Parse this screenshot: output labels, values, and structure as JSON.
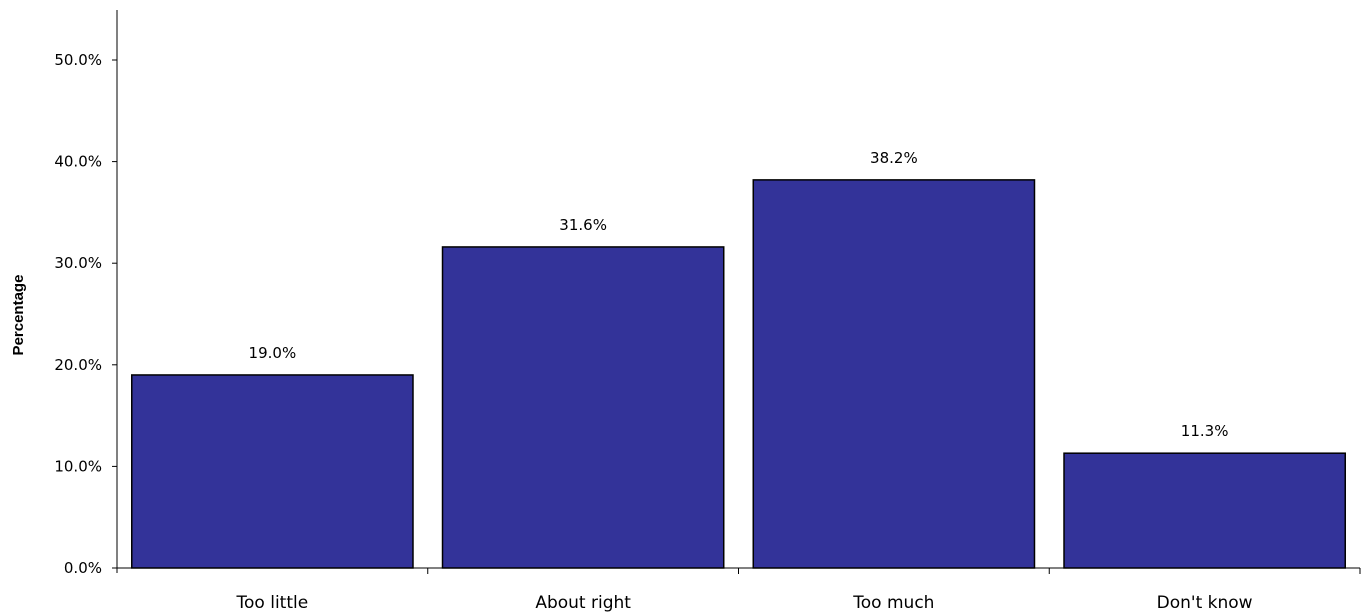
{
  "chart_data": {
    "type": "bar",
    "title": "",
    "xlabel": "",
    "ylabel": "Percentage",
    "categories": [
      "Too little",
      "About right",
      "Too much",
      "Don't know"
    ],
    "values": [
      19.0,
      31.6,
      38.2,
      11.3
    ],
    "data_labels": [
      "19.0%",
      "31.6%",
      "38.2%",
      "11.3%"
    ],
    "ylim": [
      0,
      50
    ],
    "yticks": [
      0,
      10,
      20,
      30,
      40,
      50
    ],
    "ytick_labels": [
      "0.0%",
      "10.0%",
      "20.0%",
      "30.0%",
      "40.0%",
      "50.0%"
    ],
    "bar_color": "#333399",
    "bar_edge_color": "#000000",
    "grid": false,
    "legend": "none"
  }
}
